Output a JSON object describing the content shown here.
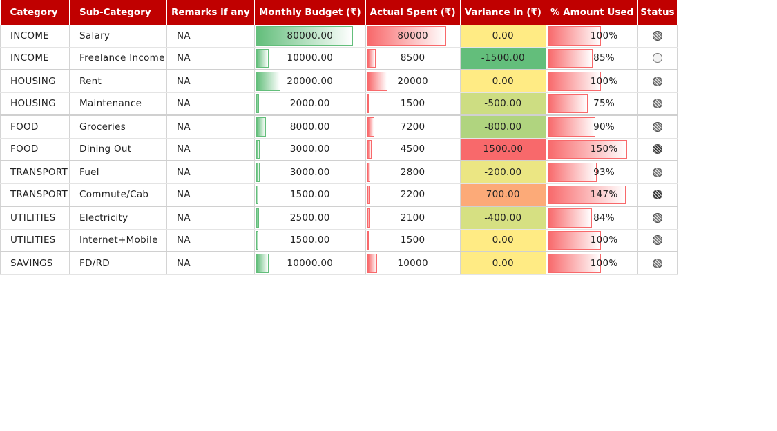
{
  "headers": {
    "category": "Category",
    "sub_category": "Sub-Category",
    "remarks": "Remarks if any",
    "budget": "Monthly Budget (₹)",
    "spent": "Actual Spent (₹)",
    "variance": "Variance in (₹)",
    "pct": "% Amount Used",
    "status": "Status"
  },
  "rows": [
    {
      "category": "INCOME",
      "sub": "Salary",
      "remarks": "NA",
      "budget": "80000.00",
      "spent": "80000",
      "variance": "0.00",
      "pct": "100%",
      "status": "full",
      "var_color": "#ffeb84"
    },
    {
      "category": "INCOME",
      "sub": "Freelance Income",
      "remarks": "NA",
      "budget": "10000.00",
      "spent": "8500",
      "variance": "-1500.00",
      "pct": "85%",
      "status": "empty",
      "var_color": "#63be7b"
    },
    {
      "category": "HOUSING",
      "sub": "Rent",
      "remarks": "NA",
      "budget": "20000.00",
      "spent": "20000",
      "variance": "0.00",
      "pct": "100%",
      "status": "full",
      "var_color": "#ffeb84"
    },
    {
      "category": "HOUSING",
      "sub": "Maintenance",
      "remarks": "NA",
      "budget": "2000.00",
      "spent": "1500",
      "variance": "-500.00",
      "pct": "75%",
      "status": "full",
      "var_color": "#cddd82"
    },
    {
      "category": "FOOD",
      "sub": "Groceries",
      "remarks": "NA",
      "budget": "8000.00",
      "spent": "7200",
      "variance": "-800.00",
      "pct": "90%",
      "status": "full",
      "var_color": "#b0d47f"
    },
    {
      "category": "FOOD",
      "sub": "Dining Out",
      "remarks": "NA",
      "budget": "3000.00",
      "spent": "4500",
      "variance": "1500.00",
      "pct": "150%",
      "status": "dark",
      "var_color": "#f8696b"
    },
    {
      "category": "TRANSPORT",
      "sub": "Fuel",
      "remarks": "NA",
      "budget": "3000.00",
      "spent": "2800",
      "variance": "-200.00",
      "pct": "93%",
      "status": "full",
      "var_color": "#ebe683"
    },
    {
      "category": "TRANSPORT",
      "sub": "Commute/Cab",
      "remarks": "NA",
      "budget": "1500.00",
      "spent": "2200",
      "variance": "700.00",
      "pct": "147%",
      "status": "dark",
      "var_color": "#fcaa78"
    },
    {
      "category": "UTILITIES",
      "sub": "Electricity",
      "remarks": "NA",
      "budget": "2500.00",
      "spent": "2100",
      "variance": "-400.00",
      "pct": "84%",
      "status": "full",
      "var_color": "#d6e082"
    },
    {
      "category": "UTILITIES",
      "sub": "Internet+Mobile",
      "remarks": "NA",
      "budget": "1500.00",
      "spent": "1500",
      "variance": "0.00",
      "pct": "100%",
      "status": "full",
      "var_color": "#ffeb84"
    },
    {
      "category": "SAVINGS",
      "sub": "FD/RD",
      "remarks": "NA",
      "budget": "10000.00",
      "spent": "10000",
      "variance": "0.00",
      "pct": "100%",
      "status": "full",
      "var_color": "#ffeb84"
    }
  ],
  "bar_colors": {
    "budget": "#63be7b",
    "spent": "#f8696b"
  }
}
